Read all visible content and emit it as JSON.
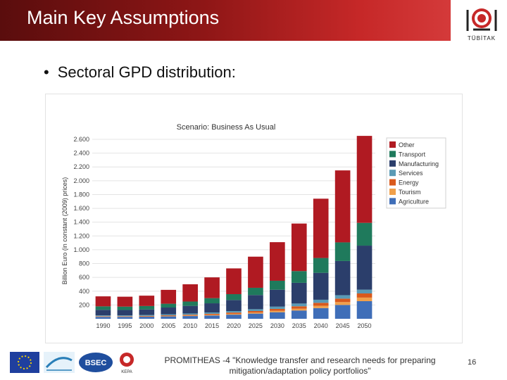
{
  "slide": {
    "title": "Main Key Assumptions",
    "bullet": "Sectoral GPD distribution:",
    "logo_text": "TÜBİTAK",
    "footer_line1": "PROMITHEAS -4 \"Knowledge transfer and research needs for preparing",
    "footer_line2": "mitigation/adaptation policy portfolios\"",
    "page_number": "16",
    "partner_logos": [
      "EU flag",
      "Framework Programme",
      "BSEC",
      "KEPA"
    ],
    "partner_logo_text": {
      "bsec": "BSEC",
      "kepa": "KEPA"
    }
  },
  "colors": {
    "title_bar": "#8e1616",
    "Other": "#b01a22",
    "Transport": "#1f7a5c",
    "Manufacturing": "#2b3e6b",
    "Services": "#5a9ab5",
    "Energy": "#d9591c",
    "Tourism": "#f0a04b",
    "Agriculture": "#3f6eb8"
  },
  "chart_data": {
    "type": "bar",
    "stacked": true,
    "title": "Scenario: Business As Usual",
    "xlabel": "",
    "ylabel": "Billion Euro (in constant (2009) prices)",
    "ylim": [
      0,
      2600
    ],
    "yticks": [
      200,
      400,
      600,
      800,
      1000,
      1200,
      1400,
      1600,
      1800,
      2000,
      2200,
      2400,
      2600
    ],
    "ytick_labels": [
      "200",
      "400",
      "600",
      "800",
      "1.000",
      "1.200",
      "1.400",
      "1.600",
      "1.800",
      "2.000",
      "2.200",
      "2.400",
      "2.600"
    ],
    "categories": [
      "1990",
      "1995",
      "2000",
      "2005",
      "2010",
      "2015",
      "2020",
      "2025",
      "2030",
      "2035",
      "2040",
      "2045",
      "2050"
    ],
    "legend_position": "top-right",
    "legend": [
      "Other",
      "Transport",
      "Manufacturing",
      "Services",
      "Energy",
      "Tourism",
      "Agriculture"
    ],
    "series": [
      {
        "name": "Agriculture",
        "values": [
          28,
          28,
          30,
          35,
          40,
          48,
          60,
          75,
          95,
          120,
          155,
          200,
          255
        ]
      },
      {
        "name": "Tourism",
        "values": [
          4,
          4,
          5,
          6,
          8,
          10,
          12,
          15,
          20,
          26,
          34,
          42,
          52
        ]
      },
      {
        "name": "Energy",
        "values": [
          6,
          6,
          7,
          9,
          11,
          14,
          18,
          22,
          28,
          35,
          42,
          50,
          60
        ]
      },
      {
        "name": "Services",
        "values": [
          12,
          12,
          13,
          15,
          18,
          20,
          22,
          27,
          33,
          40,
          45,
          50,
          55
        ]
      },
      {
        "name": "Manufacturing",
        "values": [
          80,
          78,
          80,
          98,
          110,
          132,
          160,
          205,
          245,
          300,
          390,
          495,
          638
        ]
      },
      {
        "name": "Transport",
        "values": [
          50,
          48,
          50,
          55,
          63,
          75,
          85,
          105,
          130,
          170,
          215,
          270,
          330
        ]
      },
      {
        "name": "Other",
        "values": [
          145,
          144,
          150,
          201,
          250,
          301,
          373,
          451,
          559,
          689,
          859,
          1043,
          1260
        ]
      }
    ],
    "totals": [
      325,
      320,
      335,
      419,
      500,
      600,
      730,
      900,
      1110,
      1380,
      1740,
      2150,
      2650
    ]
  }
}
